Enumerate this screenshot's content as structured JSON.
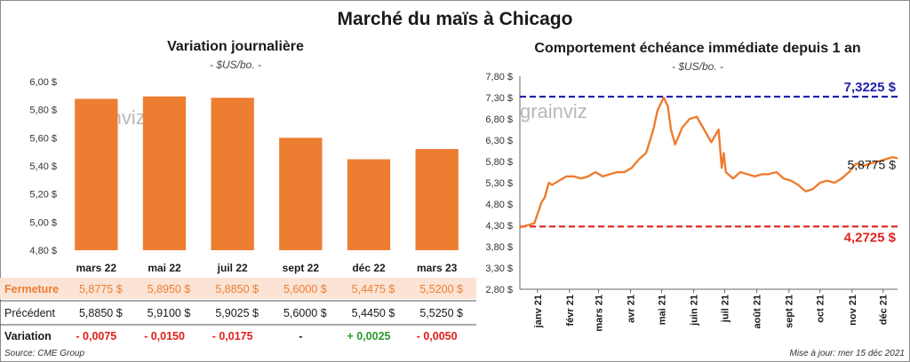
{
  "title": "Marché du maïs à Chicago",
  "left": {
    "subtitle": "Variation journalière",
    "unit": "- $US/bo. -",
    "watermark": "grainviz",
    "source": "Source: CME Group"
  },
  "right": {
    "subtitle": "Comportement échéance immédiate depuis 1 an",
    "unit": "- $US/bo. -",
    "watermark": "grainviz",
    "updated": "Mise à jour: mer 15 déc 2021"
  },
  "colors": {
    "bar": "#ed7d31",
    "line": "#ed7d31",
    "high": "#1f1fa8",
    "low": "#e0201c",
    "negative": "#e0201c",
    "positive": "#2a9a2a",
    "highlight_row": "#fbe4d5"
  },
  "table": {
    "rows": [
      {
        "label": "Fermeture",
        "highlight": true,
        "values": [
          "5,8775 $",
          "5,8950 $",
          "5,8850 $",
          "5,6000 $",
          "5,4475 $",
          "5,5200 $"
        ]
      },
      {
        "label": "Précédent",
        "highlight": false,
        "values": [
          "5,8850 $",
          "5,9100 $",
          "5,9025 $",
          "5,6000 $",
          "5,4450 $",
          "5,5250 $"
        ]
      },
      {
        "label": "Variation",
        "highlight": false,
        "values": [
          "- 0,0075",
          "- 0,0150",
          "- 0,0175",
          "-",
          "+ 0,0025",
          "- 0,0050"
        ],
        "signs": [
          "neg",
          "neg",
          "neg",
          "zero",
          "pos",
          "neg"
        ]
      }
    ]
  },
  "chart_data": [
    {
      "type": "bar",
      "title": "Variation journalière",
      "categories": [
        "mars 22",
        "mai 22",
        "juil 22",
        "sept 22",
        "déc 22",
        "mars 23"
      ],
      "values": [
        5.8775,
        5.895,
        5.885,
        5.6,
        5.4475,
        5.52
      ],
      "ylim": [
        4.8,
        6.0
      ],
      "yticks": [
        4.8,
        5.0,
        5.2,
        5.4,
        5.6,
        5.8,
        6.0
      ],
      "ytick_labels": [
        "4,80 $",
        "5,00 $",
        "5,20 $",
        "5,40 $",
        "5,60 $",
        "5,80 $",
        "6,00 $"
      ],
      "grid": false,
      "xlabel": "",
      "ylabel": ""
    },
    {
      "type": "line",
      "title": "Comportement échéance immédiate depuis 1 an",
      "x_start": "2020-12-15",
      "x_end": "2021-12-15",
      "month_labels": [
        "janv 21",
        "févr 21",
        "mars 21",
        "avr 21",
        "mai 21",
        "juin 21",
        "juil 21",
        "août 21",
        "sept 21",
        "oct 21",
        "nov 21",
        "déc 21"
      ],
      "month_dates": [
        "2021-01-01",
        "2021-02-01",
        "2021-03-01",
        "2021-04-01",
        "2021-05-01",
        "2021-06-01",
        "2021-07-01",
        "2021-08-01",
        "2021-09-01",
        "2021-10-01",
        "2021-11-01",
        "2021-12-01"
      ],
      "ylim": [
        2.8,
        7.8
      ],
      "yticks": [
        2.8,
        3.3,
        3.8,
        4.3,
        4.8,
        5.3,
        5.8,
        6.3,
        6.8,
        7.3,
        7.8
      ],
      "ytick_labels": [
        "2,80 $",
        "3,30 $",
        "3,80 $",
        "4,30 $",
        "4,80 $",
        "5,30 $",
        "5,80 $",
        "6,30 $",
        "6,80 $",
        "7,30 $",
        "7,80 $"
      ],
      "high": {
        "value": 7.3225,
        "label": "7,3225 $"
      },
      "low": {
        "value": 4.2725,
        "label": "4,2725 $"
      },
      "last": {
        "value": 5.8775,
        "label": "5,8775 $"
      },
      "series": [
        {
          "x": [
            "2020-12-15",
            "2020-12-22",
            "2020-12-29",
            "2021-01-05",
            "2021-01-08",
            "2021-01-12",
            "2021-01-15",
            "2021-01-22",
            "2021-01-29",
            "2021-02-05",
            "2021-02-12",
            "2021-02-19",
            "2021-02-26",
            "2021-03-05",
            "2021-03-12",
            "2021-03-19",
            "2021-03-26",
            "2021-04-02",
            "2021-04-09",
            "2021-04-16",
            "2021-04-23",
            "2021-04-27",
            "2021-05-03",
            "2021-05-07",
            "2021-05-10",
            "2021-05-14",
            "2021-05-21",
            "2021-05-28",
            "2021-06-04",
            "2021-06-11",
            "2021-06-18",
            "2021-06-25",
            "2021-06-28",
            "2021-06-30",
            "2021-07-02",
            "2021-07-09",
            "2021-07-16",
            "2021-07-23",
            "2021-07-30",
            "2021-08-06",
            "2021-08-12",
            "2021-08-20",
            "2021-08-27",
            "2021-09-03",
            "2021-09-10",
            "2021-09-17",
            "2021-09-24",
            "2021-10-01",
            "2021-10-08",
            "2021-10-15",
            "2021-10-22",
            "2021-10-29",
            "2021-11-05",
            "2021-11-12",
            "2021-11-19",
            "2021-11-26",
            "2021-12-03",
            "2021-12-10",
            "2021-12-15"
          ],
          "values": [
            4.25,
            4.3,
            4.35,
            4.85,
            4.95,
            5.3,
            5.25,
            5.35,
            5.45,
            5.45,
            5.4,
            5.45,
            5.55,
            5.45,
            5.5,
            5.55,
            5.55,
            5.65,
            5.85,
            6.0,
            6.55,
            7.0,
            7.3,
            7.1,
            6.55,
            6.2,
            6.6,
            6.8,
            6.85,
            6.55,
            6.25,
            6.55,
            5.65,
            6.0,
            5.55,
            5.4,
            5.55,
            5.5,
            5.45,
            5.5,
            5.5,
            5.55,
            5.4,
            5.35,
            5.25,
            5.1,
            5.15,
            5.3,
            5.35,
            5.3,
            5.4,
            5.55,
            5.75,
            5.7,
            5.75,
            5.8,
            5.85,
            5.9,
            5.8775
          ]
        }
      ]
    }
  ]
}
